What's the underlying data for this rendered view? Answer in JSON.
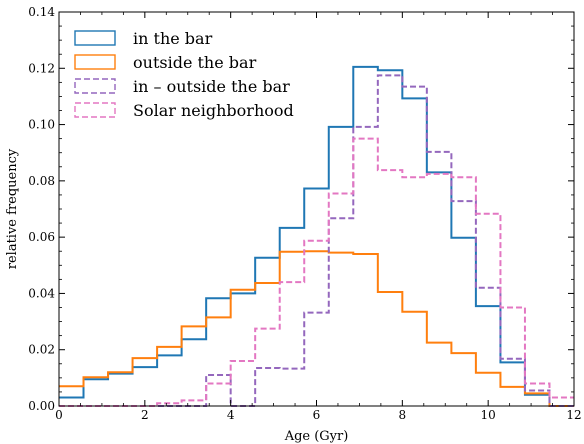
{
  "chart_data": {
    "type": "histogram-step",
    "xlabel": "Age (Gyr)",
    "ylabel": "relative frequency",
    "xlim": [
      0,
      12
    ],
    "ylim": [
      0,
      0.14
    ],
    "xticks": [
      "0",
      "2",
      "4",
      "6",
      "8",
      "10",
      "12"
    ],
    "yticks": [
      "0.00",
      "0.02",
      "0.04",
      "0.06",
      "0.08",
      "0.10",
      "0.12",
      "0.14"
    ],
    "grid": false,
    "legend_position": "top-left",
    "bin_edges": [
      0,
      0.571,
      1.143,
      1.714,
      2.286,
      2.857,
      3.429,
      4.0,
      4.571,
      5.143,
      5.714,
      6.286,
      6.857,
      7.429,
      8.0,
      8.571,
      9.143,
      9.714,
      10.286,
      10.857,
      11.429,
      12.0
    ],
    "series": [
      {
        "name": "in the bar",
        "color": "#1f77b4",
        "dashed": false,
        "values": [
          0.003,
          0.0095,
          0.0115,
          0.0138,
          0.018,
          0.0237,
          0.0383,
          0.04,
          0.0527,
          0.0633,
          0.0773,
          0.0992,
          0.1205,
          0.1193,
          0.1093,
          0.083,
          0.0598,
          0.0355,
          0.0155,
          0.004,
          0.0
        ]
      },
      {
        "name": "outside the bar",
        "color": "#ff7f0e",
        "dashed": false,
        "values": [
          0.007,
          0.0102,
          0.012,
          0.017,
          0.021,
          0.0283,
          0.0315,
          0.0413,
          0.0437,
          0.0548,
          0.055,
          0.0545,
          0.054,
          0.0405,
          0.0335,
          0.0225,
          0.0188,
          0.0118,
          0.0068,
          0.0045,
          0.0
        ]
      },
      {
        "name": "in – outside the bar",
        "color": "#9467bd",
        "dashed": true,
        "values": [
          0.0,
          0.0,
          0.0,
          0.0,
          0.0,
          0.0,
          0.011,
          0.0,
          0.0135,
          0.0133,
          0.0332,
          0.0667,
          0.0992,
          0.1175,
          0.1135,
          0.0903,
          0.0728,
          0.042,
          0.0168,
          0.0055,
          0.0
        ]
      },
      {
        "name": "Solar neighborhood",
        "color": "#e377c2",
        "dashed": true,
        "values": [
          0.0,
          0.0,
          0.0,
          0.0,
          0.001,
          0.002,
          0.008,
          0.016,
          0.0275,
          0.044,
          0.0587,
          0.0755,
          0.095,
          0.0838,
          0.0813,
          0.0825,
          0.0813,
          0.0683,
          0.035,
          0.008,
          0.003
        ]
      }
    ]
  }
}
